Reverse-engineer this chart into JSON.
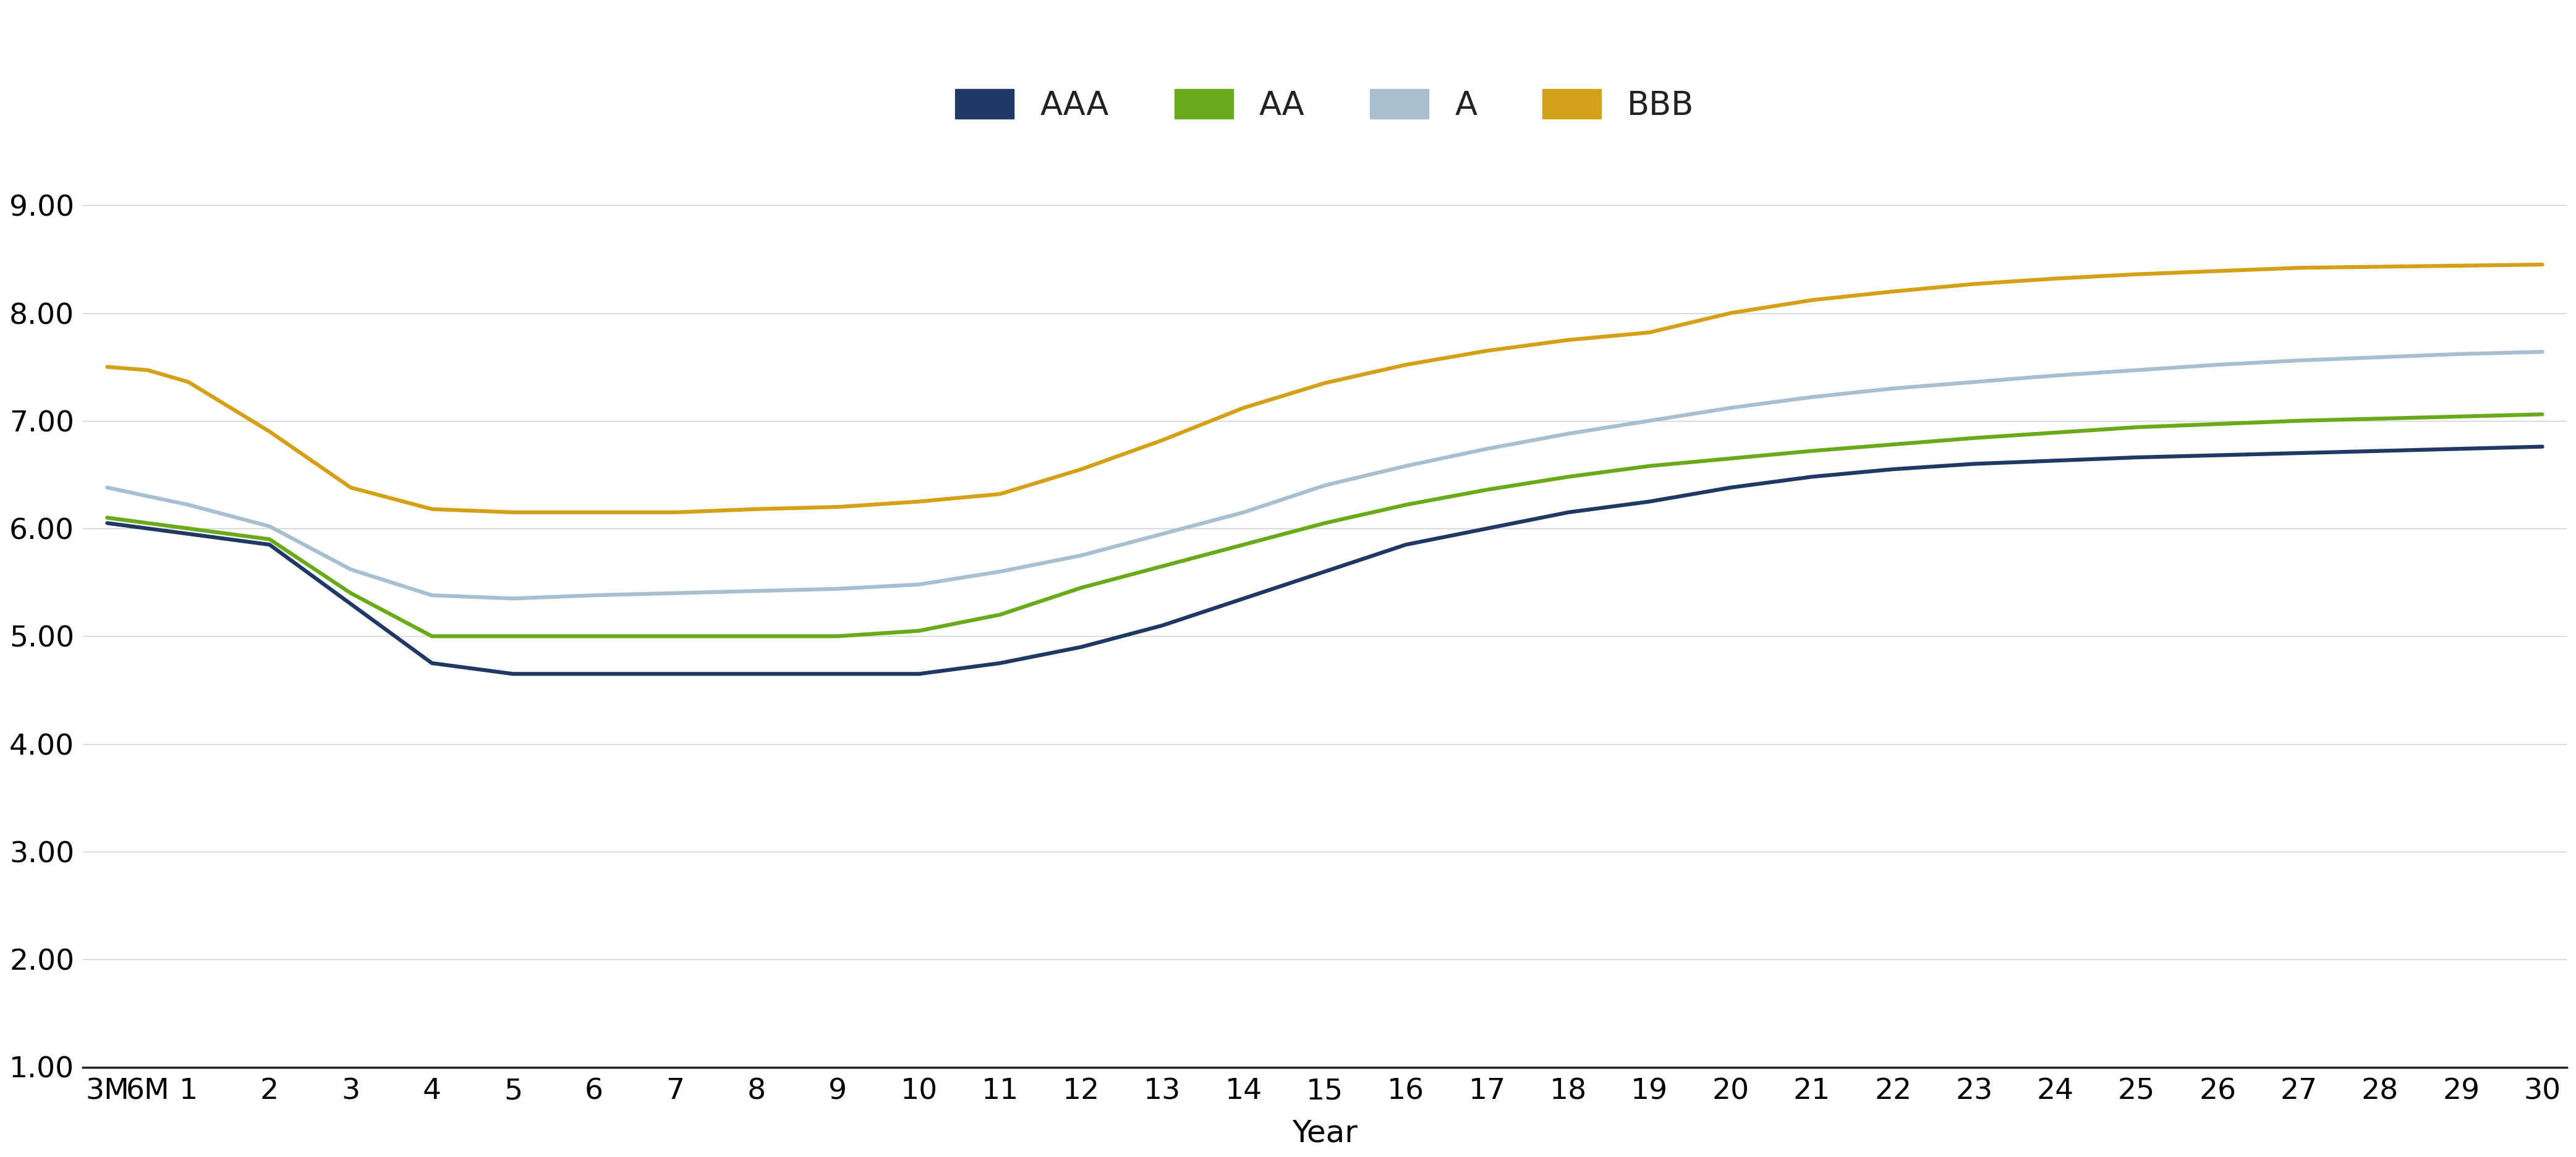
{
  "x_labels": [
    "3M",
    "6M",
    "1",
    "2",
    "3",
    "4",
    "5",
    "6",
    "7",
    "8",
    "9",
    "10",
    "11",
    "12",
    "13",
    "14",
    "15",
    "16",
    "17",
    "18",
    "19",
    "20",
    "21",
    "22",
    "23",
    "24",
    "25",
    "26",
    "27",
    "28",
    "29",
    "30"
  ],
  "x_positions": [
    0,
    0.5,
    1,
    2,
    3,
    4,
    5,
    6,
    7,
    8,
    9,
    10,
    11,
    12,
    13,
    14,
    15,
    16,
    17,
    18,
    19,
    20,
    21,
    22,
    23,
    24,
    25,
    26,
    27,
    28,
    29,
    30
  ],
  "AAA": [
    6.05,
    6.0,
    5.95,
    5.85,
    5.3,
    4.75,
    4.65,
    4.65,
    4.65,
    4.65,
    4.65,
    4.65,
    4.75,
    4.9,
    5.1,
    5.35,
    5.6,
    5.85,
    6.0,
    6.15,
    6.25,
    6.38,
    6.48,
    6.55,
    6.6,
    6.63,
    6.66,
    6.68,
    6.7,
    6.72,
    6.74,
    6.76
  ],
  "AA": [
    6.1,
    6.05,
    6.0,
    5.9,
    5.4,
    5.0,
    5.0,
    5.0,
    5.0,
    5.0,
    5.0,
    5.05,
    5.2,
    5.45,
    5.65,
    5.85,
    6.05,
    6.22,
    6.36,
    6.48,
    6.58,
    6.65,
    6.72,
    6.78,
    6.84,
    6.89,
    6.94,
    6.97,
    7.0,
    7.02,
    7.04,
    7.06
  ],
  "A": [
    6.38,
    6.3,
    6.22,
    6.02,
    5.62,
    5.38,
    5.35,
    5.38,
    5.4,
    5.42,
    5.44,
    5.48,
    5.6,
    5.75,
    5.95,
    6.15,
    6.4,
    6.58,
    6.74,
    6.88,
    7.0,
    7.12,
    7.22,
    7.3,
    7.36,
    7.42,
    7.47,
    7.52,
    7.56,
    7.59,
    7.62,
    7.64
  ],
  "BBB": [
    7.5,
    7.47,
    7.36,
    6.9,
    6.38,
    6.18,
    6.15,
    6.15,
    6.15,
    6.18,
    6.2,
    6.25,
    6.32,
    6.55,
    6.82,
    7.12,
    7.35,
    7.52,
    7.65,
    7.75,
    7.82,
    8.0,
    8.12,
    8.2,
    8.27,
    8.32,
    8.36,
    8.39,
    8.42,
    8.43,
    8.44,
    8.45
  ],
  "colors": {
    "AAA": "#1f3864",
    "AA": "#6aaa1a",
    "A": "#a8bfd0",
    "BBB": "#d4a017"
  },
  "legend_labels": [
    "AAA",
    "AA",
    "A",
    "BBB"
  ],
  "xlabel": "Year",
  "ylim": [
    1.0,
    9.5
  ],
  "yticks": [
    1.0,
    2.0,
    3.0,
    4.0,
    5.0,
    6.0,
    7.0,
    8.0,
    9.0
  ],
  "line_width": 4.5,
  "bg_color": "#ffffff",
  "grid_color": "#cccccc",
  "axis_fontsize": 36,
  "tick_fontsize": 34,
  "legend_fontsize": 38
}
